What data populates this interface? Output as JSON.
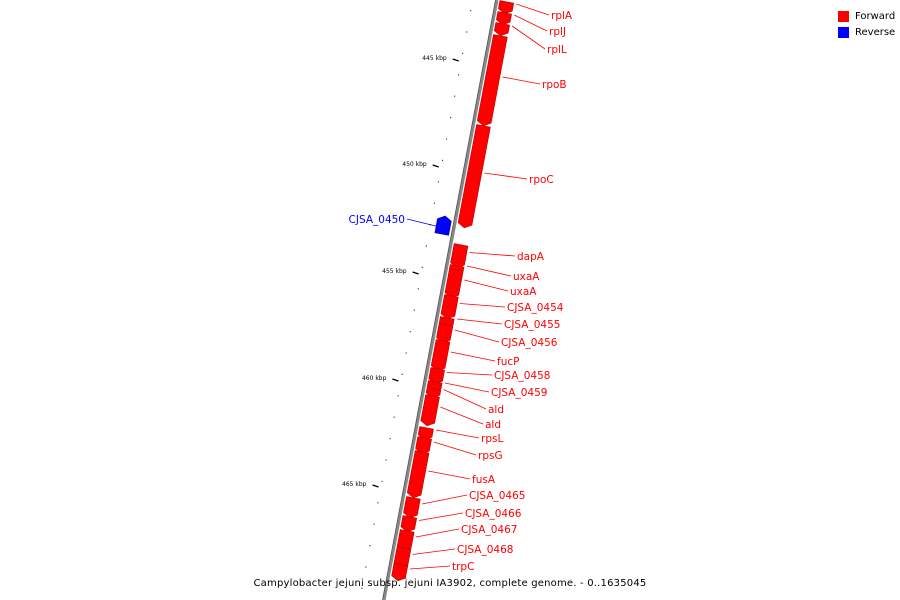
{
  "legend": {
    "forward": {
      "label": "Forward",
      "color": "#ff0000"
    },
    "reverse": {
      "label": "Reverse",
      "color": "#0000ff"
    }
  },
  "caption": "Campylobacter jejuni subsp. jejuni IA3902, complete genome. - 0..1635045",
  "kbp_labels": [
    "445 kbp",
    "450 kbp",
    "455 kbp",
    "460 kbp",
    "465 kbp"
  ],
  "genes": [
    {
      "name": "rplA",
      "strand": "forward"
    },
    {
      "name": "rplJ",
      "strand": "forward"
    },
    {
      "name": "rplL",
      "strand": "forward"
    },
    {
      "name": "rpoB",
      "strand": "forward"
    },
    {
      "name": "rpoC",
      "strand": "forward"
    },
    {
      "name": "CJSA_0450",
      "strand": "reverse"
    },
    {
      "name": "dapA",
      "strand": "forward"
    },
    {
      "name": "uxaA",
      "strand": "forward"
    },
    {
      "name": "uxaA",
      "strand": "forward"
    },
    {
      "name": "CJSA_0454",
      "strand": "forward"
    },
    {
      "name": "CJSA_0455",
      "strand": "forward"
    },
    {
      "name": "CJSA_0456",
      "strand": "forward"
    },
    {
      "name": "fucP",
      "strand": "forward"
    },
    {
      "name": "CJSA_0458",
      "strand": "forward"
    },
    {
      "name": "CJSA_0459",
      "strand": "forward"
    },
    {
      "name": "ald",
      "strand": "forward"
    },
    {
      "name": "ald",
      "strand": "forward"
    },
    {
      "name": "rpsL",
      "strand": "forward"
    },
    {
      "name": "rpsG",
      "strand": "forward"
    },
    {
      "name": "fusA",
      "strand": "forward"
    },
    {
      "name": "CJSA_0465",
      "strand": "forward"
    },
    {
      "name": "CJSA_0466",
      "strand": "forward"
    },
    {
      "name": "CJSA_0467",
      "strand": "forward"
    },
    {
      "name": "CJSA_0468",
      "strand": "forward"
    },
    {
      "name": "trpC",
      "strand": "forward"
    }
  ]
}
